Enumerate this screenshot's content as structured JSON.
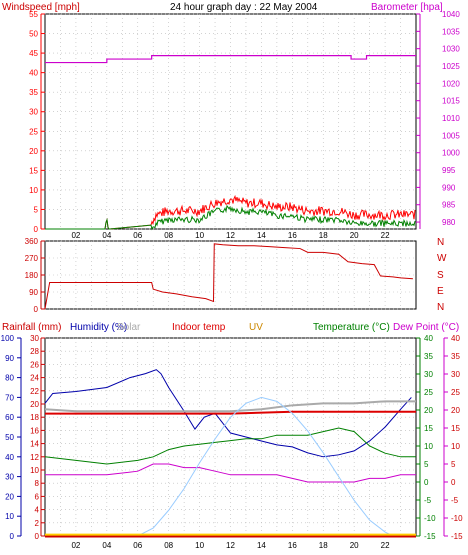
{
  "title": "24 hour graph day : 22 May 2004",
  "colors": {
    "wind": "#ff0000",
    "gust_fill": "#008000",
    "barometer": "#cc00cc",
    "direction": "#cc0000",
    "rain": "#cc0000",
    "humidity": "#0000aa",
    "solar": "#aaaaaa",
    "indoor": "#dd0000",
    "uv": "#cc8800",
    "temperature": "#008000",
    "dewpoint": "#cc00cc",
    "solar_curve": "#99ccff",
    "grid": "#b8b8b8"
  },
  "chart_data": [
    {
      "type": "line",
      "panel": "wind_barometer",
      "left_axis_label": "Windspeed [mph]",
      "right_axis_label": "Barometer [hpa]",
      "left_ticks": [
        "0",
        "5",
        "10",
        "15",
        "20",
        "25",
        "30",
        "35",
        "40",
        "45",
        "50",
        "55"
      ],
      "right_ticks": [
        "980",
        "985",
        "990",
        "995",
        "1000",
        "1005",
        "1010",
        "1015",
        "1020",
        "1025",
        "1030",
        "1035",
        "1040"
      ],
      "ylim_left": [
        0,
        55
      ],
      "ylim_right": [
        978,
        1040
      ],
      "x_ticks": [
        "02",
        "04",
        "06",
        "08",
        "10",
        "12",
        "14",
        "16",
        "18",
        "20",
        "22"
      ],
      "xlim": [
        0,
        24
      ],
      "series": [
        {
          "key": "barometer",
          "axis": "right",
          "x": [
            0,
            4.0,
            4.0,
            6.9,
            6.9,
            19.8,
            19.8,
            20.8,
            20.8,
            24
          ],
          "values": [
            1026,
            1026,
            1027,
            1027,
            1028,
            1028,
            1027,
            1027,
            1028,
            1028
          ]
        },
        {
          "key": "wind",
          "axis": "left",
          "x": [
            0,
            3.9,
            4.0,
            4.1,
            4.2,
            6.9,
            7.2,
            8,
            9,
            10,
            11,
            12,
            13,
            14,
            15,
            16,
            17,
            18,
            19,
            20,
            21,
            22,
            23,
            24
          ],
          "values": [
            0,
            0,
            3,
            0,
            0,
            1,
            3,
            4,
            4,
            4,
            6,
            7,
            6,
            6,
            5,
            5,
            4,
            4,
            4,
            3,
            3,
            3,
            3,
            3
          ]
        }
      ]
    },
    {
      "type": "line",
      "panel": "wind_direction",
      "left_ticks": [
        "0",
        "90",
        "180",
        "270",
        "360"
      ],
      "right_ticks": [
        "N",
        "W",
        "S",
        "E",
        "N"
      ],
      "ylim": [
        0,
        360
      ],
      "xlim": [
        0,
        24
      ],
      "series": [
        {
          "key": "direction",
          "x": [
            0,
            0.3,
            6.9,
            7.0,
            7.6,
            8.5,
            9.5,
            10.4,
            10.9,
            10.95,
            11.5,
            12.5,
            13.5,
            14.5,
            15.5,
            16.5,
            17,
            18,
            19,
            19.6,
            20.5,
            21.3,
            21.7,
            22.5,
            23,
            23.8
          ],
          "values": [
            0,
            140,
            140,
            105,
            90,
            80,
            65,
            55,
            40,
            345,
            340,
            335,
            335,
            330,
            325,
            320,
            300,
            300,
            290,
            250,
            240,
            235,
            175,
            170,
            165,
            160
          ]
        }
      ]
    },
    {
      "type": "line",
      "panel": "temperature_humidity",
      "legend": [
        "Rainfall (mm)",
        "Humidity (%)",
        "Solar",
        "Indoor temp",
        "UV",
        "Temperature (°C)",
        "Dew Point (°C)"
      ],
      "left_ticks_humidity": [
        "0",
        "10",
        "20",
        "30",
        "40",
        "50",
        "60",
        "70",
        "80",
        "90",
        "100"
      ],
      "left_ticks_rain": [
        "0",
        "2",
        "4",
        "6",
        "8",
        "10",
        "12",
        "14",
        "16",
        "18",
        "20",
        "22",
        "24",
        "26",
        "28",
        "30"
      ],
      "right_ticks_temp": [
        "-15",
        "-10",
        "-5",
        "0",
        "5",
        "10",
        "15",
        "20",
        "25",
        "30",
        "35",
        "40"
      ],
      "x_ticks": [
        "02",
        "04",
        "06",
        "08",
        "10",
        "12",
        "14",
        "16",
        "18",
        "20",
        "22"
      ],
      "xlim": [
        0,
        24
      ],
      "series": [
        {
          "key": "humidity",
          "axis": "humidity",
          "x": [
            0,
            0.5,
            2,
            4,
            5.5,
            6.5,
            7.2,
            7.5,
            8,
            9,
            9.7,
            10.3,
            11,
            12,
            13,
            14,
            15,
            16,
            17,
            18,
            19,
            20,
            21,
            22,
            23,
            23.7
          ],
          "values": [
            67,
            72,
            73,
            75,
            80,
            82,
            84,
            82,
            75,
            63,
            54,
            60,
            62,
            52,
            50,
            48,
            46,
            45,
            42,
            40,
            41,
            43,
            48,
            55,
            64,
            70
          ]
        },
        {
          "key": "solar",
          "axis": "humidity",
          "x": [
            0,
            2,
            4,
            6,
            8,
            10,
            12,
            14,
            16,
            18,
            20,
            22,
            24
          ],
          "values": [
            64,
            63,
            63,
            63,
            63,
            63,
            63,
            64,
            66,
            67,
            67,
            68,
            68
          ]
        },
        {
          "key": "indoor",
          "axis": "temp",
          "x": [
            0,
            4,
            8,
            12,
            16,
            20,
            24
          ],
          "values": [
            19,
            19,
            19,
            19,
            19.5,
            19.5,
            19.5
          ]
        },
        {
          "key": "temperature",
          "axis": "temp",
          "x": [
            0,
            2,
            4,
            6,
            7,
            8,
            9,
            10,
            11,
            12,
            13,
            14,
            15,
            16,
            17,
            18,
            19,
            20,
            21,
            22,
            23,
            24
          ],
          "values": [
            7,
            6,
            5,
            6,
            7,
            9,
            10,
            10.5,
            11,
            11.5,
            12,
            12,
            13,
            13,
            13,
            14,
            15,
            14,
            10,
            8,
            7,
            7
          ]
        },
        {
          "key": "dewpoint",
          "axis": "temp",
          "x": [
            0,
            2,
            4,
            6,
            7,
            8,
            9,
            10,
            11,
            12,
            13,
            14,
            15,
            16,
            17,
            18,
            19,
            20,
            21,
            22,
            23,
            24
          ],
          "values": [
            2,
            2,
            2,
            3,
            5,
            5,
            4,
            4,
            3,
            2,
            2,
            2,
            2,
            1,
            0,
            0,
            0,
            0,
            1,
            1,
            2,
            2
          ]
        },
        {
          "key": "solar_curve",
          "axis": "humidity",
          "x": [
            0,
            6,
            7,
            8,
            9,
            10,
            11,
            12,
            13,
            14,
            15,
            16,
            17,
            18,
            19,
            20,
            21,
            22,
            22.5,
            24
          ],
          "values": [
            0,
            0,
            4,
            13,
            24,
            37,
            49,
            60,
            67,
            70,
            68,
            62,
            53,
            42,
            30,
            18,
            8,
            2,
            0,
            0
          ]
        },
        {
          "key": "rain",
          "axis": "rain",
          "x": [
            0,
            24
          ],
          "values": [
            0,
            0
          ]
        },
        {
          "key": "uv",
          "axis": "rain",
          "x": [
            0,
            24
          ],
          "values": [
            0.2,
            0.2
          ]
        }
      ]
    }
  ]
}
